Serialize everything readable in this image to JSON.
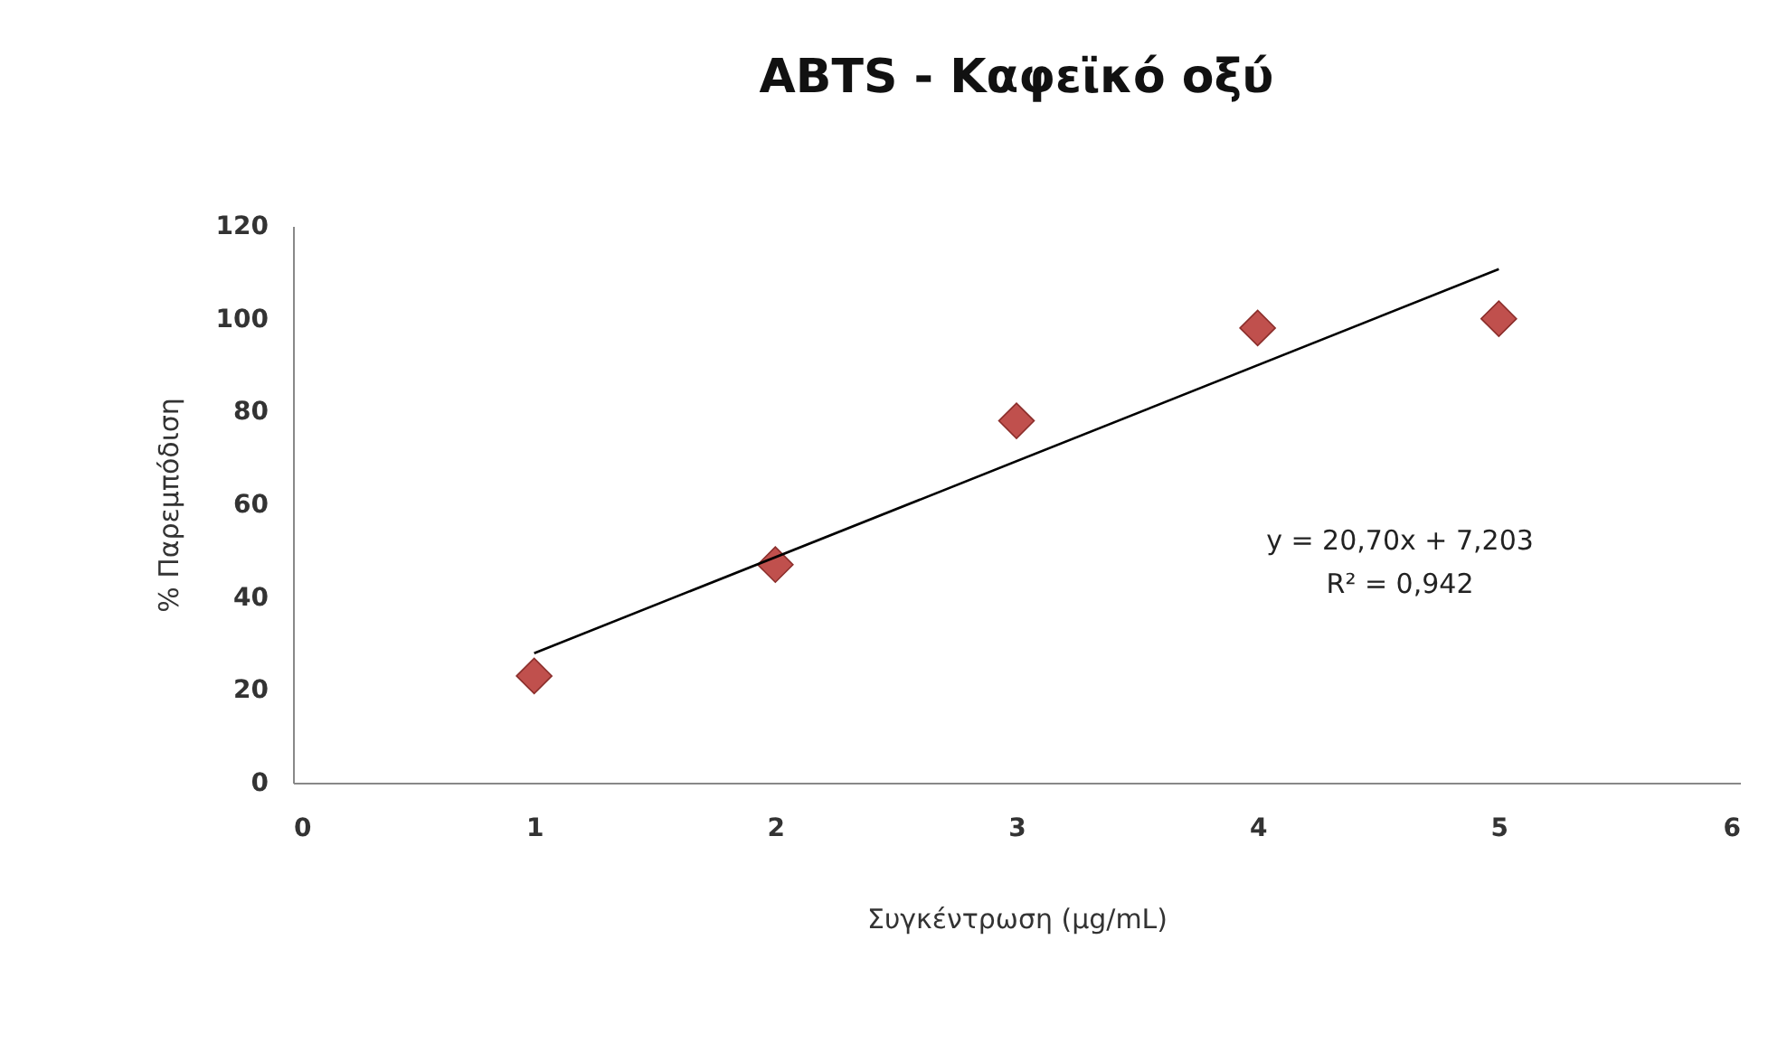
{
  "chart_data": {
    "type": "scatter",
    "title": "ABTS - Καφεϊκό οξύ",
    "xlabel": "Συγκέντρωση (μg/mL)",
    "ylabel": "% Παρεμπόδιση",
    "x": [
      1,
      2,
      3,
      4,
      5
    ],
    "series": [
      {
        "color": "#c0504d",
        "marker": "diamond",
        "values": [
          23,
          47,
          78,
          98,
          100
        ]
      },
      {
        "type": "line",
        "color": "#000000",
        "marker": "none",
        "line_style": "solid",
        "x": [
          1,
          5
        ],
        "values": [
          27.9,
          110.7
        ]
      }
    ],
    "xlim": [
      0,
      6
    ],
    "xticks": [
      0,
      1,
      2,
      3,
      4,
      5,
      6
    ],
    "ylim": [
      0,
      120
    ],
    "yticks": [
      0,
      20,
      40,
      60,
      80,
      100,
      120
    ],
    "grid": false,
    "annotations": [
      "y = 20,70x + 7,203",
      "R² = 0,942"
    ]
  }
}
